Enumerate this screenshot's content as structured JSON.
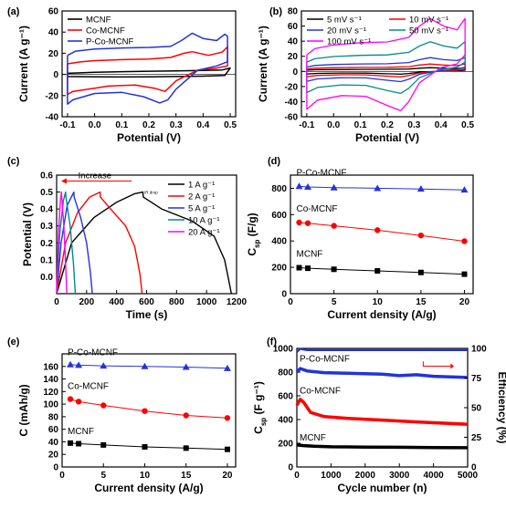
{
  "chart_data": [
    {
      "panel": "(a)",
      "type": "line",
      "xlabel": "Potential (V)",
      "ylabel": "Current (A g⁻¹)",
      "xlim": [
        -0.12,
        0.52
      ],
      "ylim": [
        -40,
        60
      ],
      "xticks": [
        "-0.1",
        "0.0",
        "0.1",
        "0.2",
        "0.3",
        "0.4",
        "0.5"
      ],
      "xtick_values": [
        -0.1,
        0.0,
        0.1,
        0.2,
        0.3,
        0.4,
        0.5
      ],
      "yticks": [
        "-40",
        "-20",
        "0",
        "20",
        "40",
        "60"
      ],
      "ytick_values": [
        -40,
        -20,
        0,
        20,
        40,
        60
      ],
      "legend_position": "top-left",
      "series": [
        {
          "name": "MCNF",
          "color": "#000000",
          "x": [
            -0.1,
            0.0,
            0.1,
            0.2,
            0.3,
            0.4,
            0.47,
            0.5,
            0.48,
            0.4,
            0.3,
            0.2,
            0.1,
            0.0,
            -0.1,
            -0.1
          ],
          "y": [
            1,
            2,
            2.6,
            3,
            3.4,
            3.8,
            4.2,
            6,
            -1,
            -1.6,
            -2,
            -2.3,
            -2.4,
            -2.2,
            -2,
            1
          ]
        },
        {
          "name": "Co-MCNF",
          "color": "#ff0000",
          "x": [
            -0.1,
            -0.05,
            0.0,
            0.1,
            0.2,
            0.28,
            0.33,
            0.36,
            0.42,
            0.47,
            0.49,
            0.49,
            0.45,
            0.38,
            0.3,
            0.26,
            0.22,
            0.15,
            0.05,
            0.0,
            -0.08,
            -0.1,
            -0.1
          ],
          "y": [
            10,
            12,
            13,
            14,
            14.5,
            16,
            20,
            21.5,
            18,
            21,
            26,
            8,
            6,
            4,
            -6,
            -16,
            -13,
            -10,
            -11,
            -13,
            -16,
            -19,
            10
          ]
        },
        {
          "name": "P-Co-MCNF",
          "color": "#2233dd",
          "x": [
            -0.1,
            -0.07,
            0.0,
            0.1,
            0.2,
            0.28,
            0.32,
            0.36,
            0.4,
            0.45,
            0.48,
            0.49,
            0.49,
            0.45,
            0.38,
            0.3,
            0.27,
            0.24,
            0.18,
            0.1,
            0.0,
            -0.08,
            -0.1,
            -0.1
          ],
          "y": [
            18,
            22,
            24,
            25,
            25.5,
            26.5,
            32,
            39,
            34,
            32,
            38,
            36,
            12,
            8,
            4,
            -14,
            -24,
            -27,
            -21,
            -17,
            -18,
            -24,
            -28,
            18
          ]
        }
      ]
    },
    {
      "panel": "(b)",
      "type": "line",
      "xlabel": "Potential (V)",
      "ylabel": "Current (A g⁻¹)",
      "xlim": [
        -0.12,
        0.52
      ],
      "ylim": [
        -60,
        80
      ],
      "xticks": [
        "-0.1",
        "0.0",
        "0.1",
        "0.2",
        "0.3",
        "0.4",
        "0.5"
      ],
      "xtick_values": [
        -0.1,
        0.0,
        0.1,
        0.2,
        0.3,
        0.4,
        0.5
      ],
      "yticks": [
        "-60",
        "-40",
        "-20",
        "0",
        "20",
        "40",
        "60",
        "80"
      ],
      "ytick_values": [
        -60,
        -40,
        -20,
        0,
        20,
        40,
        60,
        80
      ],
      "legend_position": "top",
      "series": [
        {
          "name": "5 mV s⁻¹",
          "color": "#000000",
          "scale": 0.07
        },
        {
          "name": "10 mV s⁻¹",
          "color": "#ff0000",
          "scale": 0.14
        },
        {
          "name": "20 mV s⁻¹",
          "color": "#2233dd",
          "scale": 0.26
        },
        {
          "name": "50 mV s⁻¹",
          "color": "#008b8b",
          "scale": 0.56
        },
        {
          "name": "100 mV s⁻¹",
          "color": "#ff00ff",
          "scale": 1.0
        }
      ],
      "base_curve": {
        "x": [
          -0.1,
          -0.07,
          0.0,
          0.1,
          0.2,
          0.28,
          0.32,
          0.36,
          0.41,
          0.46,
          0.49,
          0.49,
          0.46,
          0.4,
          0.32,
          0.28,
          0.25,
          0.2,
          0.12,
          0.03,
          -0.06,
          -0.1,
          -0.1
        ],
        "y": [
          22,
          30,
          35,
          38,
          39,
          45,
          60,
          70,
          60,
          55,
          70,
          22,
          10,
          5,
          -15,
          -40,
          -52,
          -45,
          -33,
          -32,
          -38,
          -50,
          22
        ]
      }
    },
    {
      "panel": "(c)",
      "type": "line",
      "xlabel": "Time (s)",
      "ylabel": "Potential (V)",
      "xlim": [
        0,
        1200
      ],
      "ylim": [
        -0.1,
        0.6
      ],
      "xticks": [
        "0",
        "200",
        "400",
        "600",
        "800",
        "1000",
        "1200"
      ],
      "xtick_values": [
        0,
        200,
        400,
        600,
        800,
        1000,
        1200
      ],
      "yticks": [
        "0.0",
        "0.1",
        "0.2",
        "0.3",
        "0.4",
        "0.5",
        "0.6"
      ],
      "ytick_values": [
        0,
        0.1,
        0.2,
        0.3,
        0.4,
        0.5,
        0.6
      ],
      "legend_position": "top-right",
      "annotation_arrow": "Increase",
      "annotation_small": "IR drop",
      "series": [
        {
          "name": "1 A g⁻¹",
          "color": "#000000",
          "x": [
            0,
            100,
            250,
            400,
            520,
            575,
            578,
            700,
            900,
            1050,
            1120,
            1150,
            1165
          ],
          "y": [
            -0.1,
            0.2,
            0.35,
            0.44,
            0.49,
            0.5,
            0.47,
            0.4,
            0.33,
            0.24,
            0.1,
            -0.03,
            -0.1
          ]
        },
        {
          "name": "2 A g⁻¹",
          "color": "#ff0000",
          "x": [
            0,
            60,
            140,
            220,
            290,
            292,
            380,
            460,
            520,
            555,
            570
          ],
          "y": [
            -0.1,
            0.2,
            0.38,
            0.47,
            0.5,
            0.47,
            0.38,
            0.3,
            0.18,
            0.02,
            -0.1
          ]
        },
        {
          "name": "5 A g⁻¹",
          "color": "#2233dd",
          "x": [
            0,
            30,
            70,
            115,
            117,
            160,
            200,
            225,
            238
          ],
          "y": [
            -0.1,
            0.2,
            0.42,
            0.5,
            0.47,
            0.35,
            0.2,
            0.03,
            -0.1
          ]
        },
        {
          "name": "10 A g⁻¹",
          "color": "#008b8b",
          "x": [
            0,
            20,
            45,
            60,
            62,
            90,
            112,
            125
          ],
          "y": [
            -0.1,
            0.25,
            0.45,
            0.5,
            0.47,
            0.3,
            0.08,
            -0.1
          ]
        },
        {
          "name": "20 A g⁻¹",
          "color": "#ff00ff",
          "x": [
            0,
            12,
            25,
            32,
            34,
            48,
            60,
            68
          ],
          "y": [
            -0.1,
            0.25,
            0.45,
            0.5,
            0.47,
            0.3,
            0.08,
            -0.1
          ]
        }
      ]
    },
    {
      "panel": "(d)",
      "type": "scatter",
      "xlabel": "Current density (A/g)",
      "ylabel_main": "C",
      "ylabel_sub": "sp",
      "ylabel_unit": " (F/g)",
      "xlim": [
        0,
        21
      ],
      "ylim": [
        0,
        900
      ],
      "xticks": [
        "0",
        "5",
        "10",
        "15",
        "20"
      ],
      "xtick_values": [
        0,
        5,
        10,
        15,
        20
      ],
      "yticks": [
        "0",
        "200",
        "400",
        "600",
        "800"
      ],
      "ytick_values": [
        0,
        200,
        400,
        600,
        800
      ],
      "series": [
        {
          "name": "P-Co-MCNF",
          "color": "#2233dd",
          "marker": "triangle",
          "x": [
            1,
            2,
            5,
            10,
            15,
            20
          ],
          "y": [
            815,
            810,
            805,
            800,
            795,
            788
          ]
        },
        {
          "name": "Co-MCNF",
          "color": "#ff0000",
          "marker": "circle",
          "x": [
            1,
            2,
            5,
            10,
            15,
            20
          ],
          "y": [
            540,
            535,
            515,
            482,
            442,
            398
          ]
        },
        {
          "name": "MCNF",
          "color": "#000000",
          "marker": "square",
          "x": [
            1,
            2,
            5,
            10,
            15,
            20
          ],
          "y": [
            197,
            193,
            185,
            173,
            161,
            148
          ]
        }
      ]
    },
    {
      "panel": "(e)",
      "type": "scatter",
      "xlabel": "Current density (A/g)",
      "ylabel": "C (mAh/g)",
      "xlim": [
        0,
        21
      ],
      "ylim": [
        0,
        180
      ],
      "xticks": [
        "0",
        "5",
        "10",
        "15",
        "20"
      ],
      "xtick_values": [
        0,
        5,
        10,
        15,
        20
      ],
      "yticks": [
        "0",
        "20",
        "40",
        "60",
        "80",
        "100",
        "120",
        "140",
        "160"
      ],
      "ytick_values": [
        0,
        20,
        40,
        60,
        80,
        100,
        120,
        140,
        160
      ],
      "series": [
        {
          "name": "P-Co-MCNF",
          "color": "#2233dd",
          "marker": "triangle",
          "x": [
            1,
            2,
            5,
            10,
            15,
            20
          ],
          "y": [
            163,
            162,
            161,
            160,
            159,
            157
          ]
        },
        {
          "name": "Co-MCNF",
          "color": "#ff0000",
          "marker": "circle",
          "x": [
            1,
            2,
            5,
            10,
            15,
            20
          ],
          "y": [
            108,
            104,
            98,
            89,
            82,
            78
          ]
        },
        {
          "name": "MCNF",
          "color": "#000000",
          "marker": "square",
          "x": [
            1,
            2,
            5,
            10,
            15,
            20
          ],
          "y": [
            38,
            37,
            35,
            32,
            30,
            28
          ]
        }
      ]
    },
    {
      "panel": "(f)",
      "type": "line",
      "xlabel": "Cycle number (n)",
      "ylabel_main": "C",
      "ylabel_sub": "sp",
      "ylabel_unit": " (F g⁻¹)",
      "y2label": "Efficiency (%)",
      "xlim": [
        0,
        5000
      ],
      "ylim": [
        0,
        1000
      ],
      "y2lim": [
        0,
        100
      ],
      "xticks": [
        "0",
        "1000",
        "2000",
        "3000",
        "4000",
        "5000"
      ],
      "xtick_values": [
        0,
        1000,
        2000,
        3000,
        4000,
        5000
      ],
      "yticks": [
        "0",
        "200",
        "400",
        "600",
        "800",
        "1000"
      ],
      "ytick_values": [
        0,
        200,
        400,
        600,
        800,
        1000
      ],
      "y2ticks": [
        "0",
        "25",
        "50",
        "75",
        "100"
      ],
      "y2tick_values": [
        0,
        25,
        50,
        75,
        100
      ],
      "efficiency_color": "#2233dd",
      "efficiency": {
        "x": [
          0,
          100,
          300,
          1000,
          2000,
          3000,
          4000,
          5000
        ],
        "y": [
          97,
          99.5,
          98.5,
          98.5,
          98.5,
          98.5,
          98.5,
          98.5
        ]
      },
      "series": [
        {
          "name": "P-Co-MCNF",
          "color": "#2233dd",
          "x": [
            0,
            100,
            300,
            800,
            1500,
            2500,
            3000,
            3500,
            4000,
            5000
          ],
          "y": [
            800,
            830,
            810,
            795,
            790,
            782,
            770,
            778,
            765,
            755
          ]
        },
        {
          "name": "Co-MCNF",
          "color": "#ff0000",
          "x": [
            0,
            100,
            200,
            400,
            800,
            1500,
            2500,
            3500,
            5000
          ],
          "y": [
            520,
            570,
            545,
            460,
            425,
            410,
            395,
            380,
            360
          ]
        },
        {
          "name": "MCNF",
          "color": "#000000",
          "x": [
            0,
            200,
            500,
            1000,
            2000,
            3000,
            4000,
            5000
          ],
          "y": [
            185,
            180,
            175,
            170,
            168,
            166,
            164,
            162
          ]
        }
      ]
    }
  ]
}
